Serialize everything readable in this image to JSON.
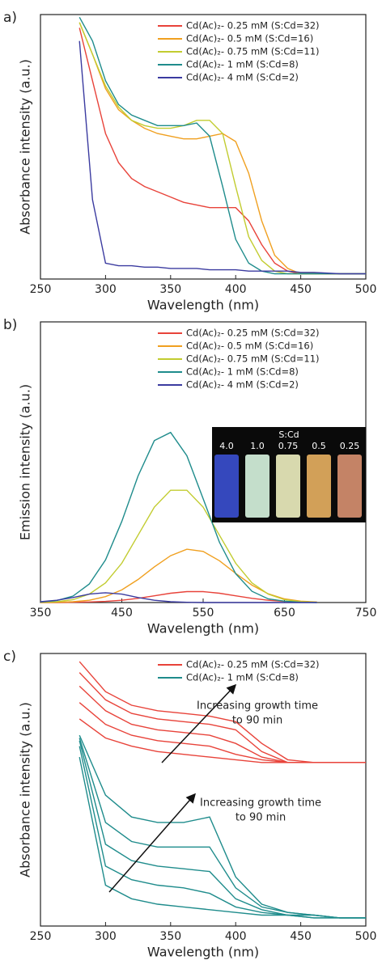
{
  "chart_data": [
    {
      "type": "line",
      "panel_label": "a)",
      "x_label": "Wavelength (nm)",
      "y_label": "Absorbance intensity (a.u.)",
      "x": [
        280,
        290,
        300,
        310,
        320,
        330,
        340,
        350,
        360,
        370,
        380,
        390,
        400,
        410,
        420,
        430,
        440,
        450,
        460,
        480,
        500
      ],
      "xlim": [
        250,
        500
      ],
      "xticks": [
        250,
        300,
        350,
        400,
        450,
        500
      ],
      "ylim": [
        0,
        1
      ],
      "legend": "upper right",
      "series": [
        {
          "name": "Cd(Ac)₂- 0.25 mM (S:Cd=32)",
          "color": "#e8433a",
          "values": [
            0.95,
            0.75,
            0.55,
            0.44,
            0.38,
            0.35,
            0.33,
            0.31,
            0.29,
            0.28,
            0.27,
            0.27,
            0.27,
            0.22,
            0.13,
            0.06,
            0.03,
            0.02,
            0.02,
            0.02,
            0.02
          ]
        },
        {
          "name": "Cd(Ac)₂- 0.5 mM (S:Cd=16)",
          "color": "#f0a020",
          "values": [
            0.97,
            0.85,
            0.72,
            0.64,
            0.6,
            0.57,
            0.55,
            0.54,
            0.53,
            0.53,
            0.54,
            0.55,
            0.52,
            0.4,
            0.22,
            0.09,
            0.04,
            0.02,
            0.02,
            0.02,
            0.02
          ]
        },
        {
          "name": "Cd(Ac)₂- 0.75 mM (S:Cd=11)",
          "color": "#c2cc30",
          "values": [
            0.97,
            0.85,
            0.73,
            0.65,
            0.6,
            0.58,
            0.57,
            0.57,
            0.58,
            0.6,
            0.6,
            0.55,
            0.35,
            0.16,
            0.07,
            0.03,
            0.02,
            0.02,
            0.02,
            0.02,
            0.02
          ]
        },
        {
          "name": "Cd(Ac)₂- 1 mM (S:Cd=8)",
          "color": "#1f8c8c",
          "values": [
            0.99,
            0.9,
            0.75,
            0.66,
            0.62,
            0.6,
            0.58,
            0.58,
            0.58,
            0.59,
            0.54,
            0.35,
            0.15,
            0.06,
            0.03,
            0.02,
            0.02,
            0.02,
            0.02,
            0.02,
            0.02
          ]
        },
        {
          "name": "Cd(Ac)₂- 4 mM (S:Cd=2)",
          "color": "#3b3ba0",
          "values": [
            0.9,
            0.3,
            0.06,
            0.05,
            0.05,
            0.045,
            0.045,
            0.04,
            0.04,
            0.04,
            0.035,
            0.035,
            0.035,
            0.03,
            0.03,
            0.03,
            0.03,
            0.025,
            0.025,
            0.02,
            0.02
          ]
        }
      ]
    },
    {
      "type": "line",
      "panel_label": "b)",
      "x_label": "Wavelength (nm)",
      "y_label": "Emission intensity (a.u.)",
      "x": [
        350,
        370,
        390,
        410,
        430,
        450,
        470,
        490,
        510,
        530,
        550,
        570,
        590,
        610,
        630,
        650,
        670,
        690
      ],
      "xlim": [
        350,
        750
      ],
      "xticks": [
        350,
        450,
        550,
        650,
        750
      ],
      "ylim": [
        0,
        1
      ],
      "legend": "upper right",
      "series": [
        {
          "name": "Cd(Ac)₂- 0.25 mM (S:Cd=32)",
          "color": "#e8433a",
          "values": [
            0,
            0,
            0.001,
            0.002,
            0.004,
            0.008,
            0.015,
            0.024,
            0.033,
            0.039,
            0.039,
            0.033,
            0.024,
            0.015,
            0.008,
            0.004,
            0.002,
            0.001
          ]
        },
        {
          "name": "Cd(Ac)₂- 0.5 mM (S:Cd=16)",
          "color": "#f0a020",
          "values": [
            0,
            0.001,
            0.003,
            0.008,
            0.021,
            0.045,
            0.082,
            0.127,
            0.167,
            0.19,
            0.182,
            0.149,
            0.104,
            0.062,
            0.031,
            0.013,
            0.005,
            0.002
          ]
        },
        {
          "name": "Cd(Ac)₂- 0.75 mM (S:Cd=11)",
          "color": "#c2cc30",
          "values": [
            0.001,
            0.003,
            0.01,
            0.03,
            0.07,
            0.14,
            0.24,
            0.34,
            0.4,
            0.4,
            0.34,
            0.24,
            0.14,
            0.07,
            0.03,
            0.01,
            0.003,
            0.001
          ]
        },
        {
          "name": "Cd(Ac)₂- 1 mM (S:Cd=8)",
          "color": "#1f8c8c",
          "values": [
            0.002,
            0.007,
            0.023,
            0.066,
            0.152,
            0.289,
            0.451,
            0.577,
            0.606,
            0.523,
            0.37,
            0.215,
            0.103,
            0.04,
            0.013,
            0.005,
            0.001,
            0
          ]
        },
        {
          "name": "Cd(Ac)₂- 4 mM (S:Cd=2)",
          "color": "#3b3ba0",
          "values": [
            0.003,
            0.008,
            0.018,
            0.03,
            0.035,
            0.03,
            0.018,
            0.008,
            0.003,
            0.001,
            0,
            0,
            0,
            0,
            0,
            0,
            0,
            0
          ]
        }
      ],
      "inset": {
        "title": "S:Cd",
        "labels": [
          "4.0",
          "1.0",
          "0.75",
          "0.5",
          "0.25"
        ],
        "colors": [
          "#3a4fd0",
          "#d8f5e0",
          "#eef0c0",
          "#e8b060",
          "#d89070"
        ]
      }
    },
    {
      "type": "line-group",
      "panel_label": "c)",
      "x_label": "Wavelength (nm)",
      "y_label": "Absorbance intensity (a.u.)",
      "x": [
        280,
        300,
        320,
        340,
        360,
        380,
        400,
        420,
        440,
        460,
        480,
        500
      ],
      "xlim": [
        250,
        500
      ],
      "xticks": [
        250,
        300,
        350,
        400,
        450,
        500
      ],
      "ylim": [
        0,
        1
      ],
      "legend": "upper right",
      "series": [
        {
          "name": "Cd(Ac)₂- 0.25 mM (S:Cd=32)",
          "color": "#e8433a",
          "curves": [
            [
              0.76,
              0.69,
              0.66,
              0.64,
              0.63,
              0.62,
              0.61,
              0.6,
              0.6,
              0.6,
              0.6,
              0.6
            ],
            [
              0.82,
              0.74,
              0.7,
              0.68,
              0.67,
              0.66,
              0.63,
              0.61,
              0.6,
              0.6,
              0.6,
              0.6
            ],
            [
              0.88,
              0.79,
              0.74,
              0.72,
              0.71,
              0.7,
              0.67,
              0.62,
              0.6,
              0.6,
              0.6,
              0.6
            ],
            [
              0.93,
              0.83,
              0.78,
              0.76,
              0.75,
              0.74,
              0.72,
              0.64,
              0.6,
              0.6,
              0.6,
              0.6
            ],
            [
              0.97,
              0.86,
              0.81,
              0.79,
              0.78,
              0.77,
              0.75,
              0.67,
              0.61,
              0.6,
              0.6,
              0.6
            ]
          ]
        },
        {
          "name": "Cd(Ac)₂- 1 mM (S:Cd=8)",
          "color": "#1f8c8c",
          "curves": [
            [
              0.62,
              0.15,
              0.1,
              0.08,
              0.07,
              0.06,
              0.05,
              0.04,
              0.04,
              0.03,
              0.03,
              0.03
            ],
            [
              0.66,
              0.22,
              0.17,
              0.15,
              0.14,
              0.12,
              0.07,
              0.05,
              0.04,
              0.03,
              0.03,
              0.03
            ],
            [
              0.68,
              0.3,
              0.24,
              0.22,
              0.21,
              0.2,
              0.1,
              0.06,
              0.04,
              0.04,
              0.03,
              0.03
            ],
            [
              0.69,
              0.38,
              0.31,
              0.29,
              0.29,
              0.29,
              0.14,
              0.07,
              0.05,
              0.04,
              0.03,
              0.03
            ],
            [
              0.7,
              0.48,
              0.4,
              0.38,
              0.38,
              0.4,
              0.18,
              0.08,
              0.05,
              0.04,
              0.03,
              0.03
            ]
          ]
        }
      ],
      "annotations": [
        {
          "lines": [
            "Increasing growth time",
            "to 90 min"
          ]
        },
        {
          "lines": [
            "Increasing growth time",
            "to 90 min"
          ]
        }
      ]
    }
  ]
}
